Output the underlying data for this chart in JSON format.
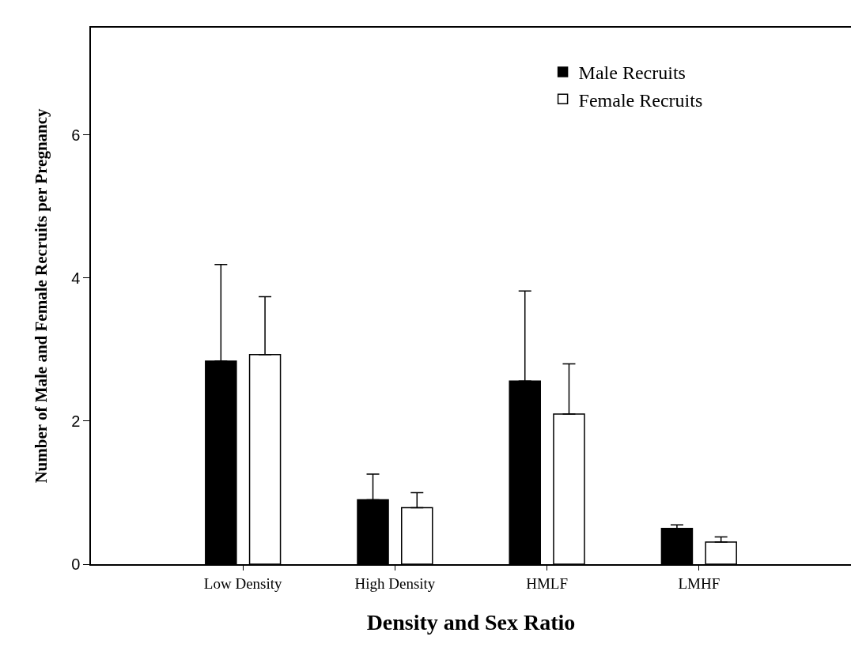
{
  "chart_data": {
    "type": "bar",
    "xlabel": "Density and Sex Ratio",
    "ylabel": "Number of Male and Female Recruits per Pregnancy",
    "categories": [
      "Low Density",
      "High Density",
      "HMLF",
      "LMHF"
    ],
    "series": [
      {
        "name": "Male Recruits",
        "color": "#000000",
        "values": [
          2.84,
          0.9,
          2.56,
          0.5
        ],
        "errors": [
          [
            2.84,
            4.19
          ],
          [
            0.9,
            1.26
          ],
          [
            2.56,
            3.82
          ],
          [
            0.5,
            0.55
          ]
        ]
      },
      {
        "name": "Female Recruits",
        "color": "#ffffff",
        "values": [
          2.93,
          0.79,
          2.1,
          0.31
        ],
        "errors": [
          [
            2.93,
            3.74
          ],
          [
            0.79,
            1.0
          ],
          [
            2.1,
            2.8
          ],
          [
            0.31,
            0.38
          ]
        ]
      }
    ],
    "ylim": [
      0,
      7.5
    ],
    "yticks": [
      0,
      2,
      4,
      6
    ],
    "grid": false,
    "legend": "top right"
  }
}
